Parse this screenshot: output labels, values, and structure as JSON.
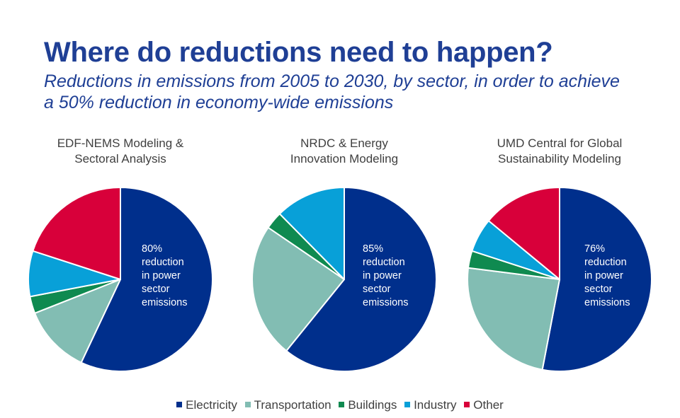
{
  "title": "Where do reductions need to happen?",
  "subtitle": "Reductions in emissions from 2005 to 2030, by sector, in order to achieve a 50% reduction in economy-wide emissions",
  "colors": {
    "Electricity": "#002f8c",
    "Transportation": "#82bdb3",
    "Buildings": "#0f8a50",
    "Industry": "#08a0d8",
    "Other": "#d8003a"
  },
  "legend": [
    "Electricity",
    "Transportation",
    "Buildings",
    "Industry",
    "Other"
  ],
  "chart_data": [
    {
      "type": "pie",
      "title_lines": [
        "EDF-NEMS Modeling &",
        "Sectoral Analysis"
      ],
      "annotation_lines": [
        "80%",
        "reduction",
        "in power",
        "sector",
        "emissions"
      ],
      "categories": [
        "Electricity",
        "Transportation",
        "Buildings",
        "Industry",
        "Other"
      ],
      "values": [
        57,
        12,
        3,
        8,
        20
      ]
    },
    {
      "type": "pie",
      "title_lines": [
        "NRDC & Energy",
        "Innovation Modeling"
      ],
      "annotation_lines": [
        "85%",
        "reduction",
        "in power",
        "sector",
        "emissions"
      ],
      "categories": [
        "Electricity",
        "Transportation",
        "Buildings",
        "Other",
        "Industry"
      ],
      "values": [
        59,
        23,
        3,
        0,
        12
      ]
    },
    {
      "type": "pie",
      "title_lines": [
        "UMD Central for Global",
        "Sustainability Modeling"
      ],
      "annotation_lines": [
        "76%",
        "reduction",
        "in power",
        "sector",
        "emissions"
      ],
      "categories": [
        "Electricity",
        "Transportation",
        "Buildings",
        "Industry",
        "Other"
      ],
      "values": [
        53,
        24,
        3,
        6,
        14
      ]
    }
  ]
}
